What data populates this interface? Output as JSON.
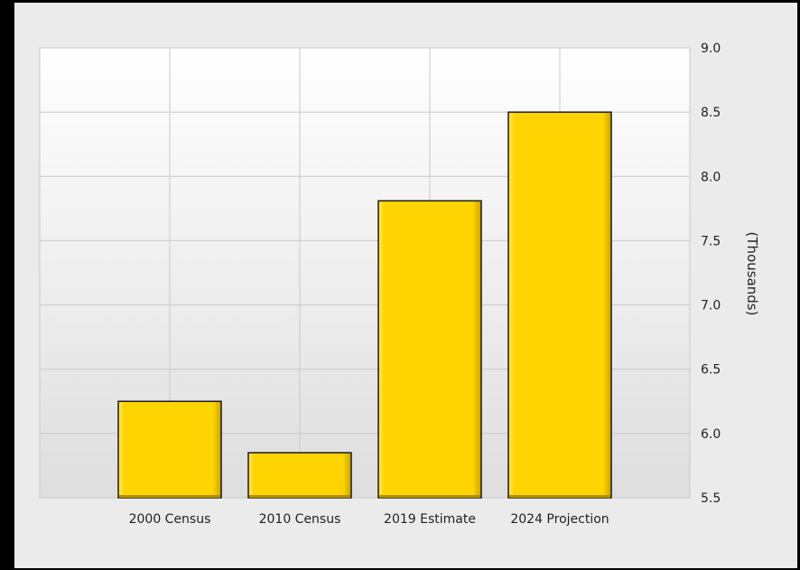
{
  "chart_data": {
    "type": "bar",
    "categories": [
      "2000 Census",
      "2010 Census",
      "2019 Estimate",
      "2024 Projection"
    ],
    "values": [
      6.25,
      5.85,
      7.81,
      8.5
    ],
    "ylabel": "(Thousands)",
    "ylim": [
      5.5,
      9.0
    ],
    "yticks": [
      "9.0",
      "8.5",
      "8.0",
      "7.5",
      "7.0",
      "6.5",
      "6.0",
      "5.5"
    ],
    "y_axis_side": "right",
    "grid": true,
    "legend": "none",
    "bar_color": "#ffd400",
    "bar_edge_color": "#1a1a1a",
    "background_color": "#ebebeb"
  }
}
